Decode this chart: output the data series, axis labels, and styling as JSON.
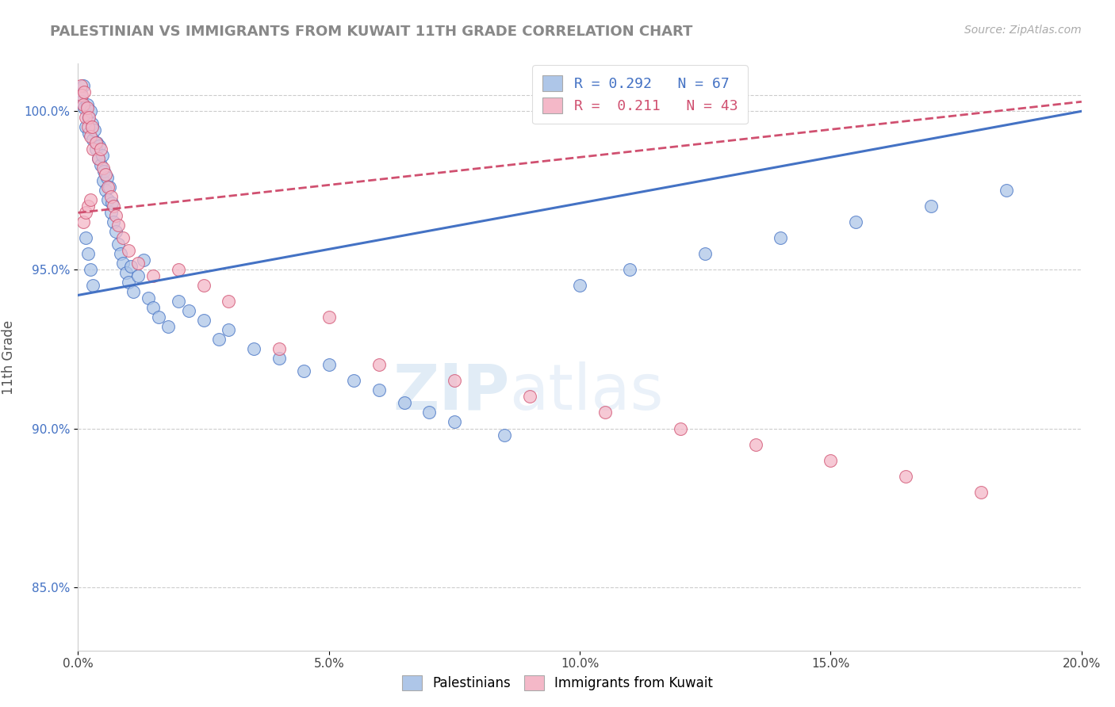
{
  "title": "PALESTINIAN VS IMMIGRANTS FROM KUWAIT 11TH GRADE CORRELATION CHART",
  "source": "Source: ZipAtlas.com",
  "ylabel": "11th Grade",
  "xlim": [
    0.0,
    20.0
  ],
  "ylim": [
    83.0,
    101.5
  ],
  "xticks": [
    0.0,
    5.0,
    10.0,
    15.0,
    20.0
  ],
  "yticks": [
    85.0,
    90.0,
    95.0,
    100.0
  ],
  "ytick_labels": [
    "85.0%",
    "90.0%",
    "95.0%",
    "100.0%"
  ],
  "xtick_labels": [
    "0.0%",
    "5.0%",
    "10.0%",
    "15.0%",
    "20.0%"
  ],
  "blue_R": 0.292,
  "blue_N": 67,
  "pink_R": 0.211,
  "pink_N": 43,
  "blue_color": "#aec6e8",
  "pink_color": "#f4b8c8",
  "blue_line_color": "#4472c4",
  "pink_line_color": "#d05070",
  "legend_label_blue": "Palestinians",
  "legend_label_pink": "Immigrants from Kuwait",
  "watermark_left": "ZIP",
  "watermark_right": "atlas",
  "blue_line_x0": 0.0,
  "blue_line_y0": 94.2,
  "blue_line_x1": 20.0,
  "blue_line_y1": 100.0,
  "pink_line_x0": 0.0,
  "pink_line_y0": 96.8,
  "pink_line_x1": 20.0,
  "pink_line_y1": 100.3,
  "blue_scatter_x": [
    0.05,
    0.08,
    0.1,
    0.12,
    0.15,
    0.18,
    0.2,
    0.22,
    0.25,
    0.28,
    0.3,
    0.32,
    0.35,
    0.38,
    0.4,
    0.42,
    0.45,
    0.48,
    0.5,
    0.52,
    0.55,
    0.58,
    0.6,
    0.62,
    0.65,
    0.68,
    0.7,
    0.75,
    0.8,
    0.85,
    0.9,
    0.95,
    1.0,
    1.05,
    1.1,
    1.2,
    1.3,
    1.4,
    1.5,
    1.6,
    1.8,
    2.0,
    2.2,
    2.5,
    2.8,
    3.0,
    3.5,
    4.0,
    4.5,
    5.0,
    5.5,
    6.0,
    6.5,
    7.0,
    7.5,
    8.5,
    10.0,
    11.0,
    12.5,
    14.0,
    15.5,
    17.0,
    18.5,
    0.15,
    0.2,
    0.25,
    0.3
  ],
  "blue_scatter_y": [
    100.5,
    100.3,
    100.8,
    100.1,
    99.5,
    100.2,
    99.8,
    99.3,
    100.0,
    99.6,
    99.1,
    99.4,
    98.8,
    99.0,
    98.5,
    98.9,
    98.3,
    98.6,
    97.8,
    98.1,
    97.5,
    97.9,
    97.2,
    97.6,
    96.8,
    97.1,
    96.5,
    96.2,
    95.8,
    95.5,
    95.2,
    94.9,
    94.6,
    95.1,
    94.3,
    94.8,
    95.3,
    94.1,
    93.8,
    93.5,
    93.2,
    94.0,
    93.7,
    93.4,
    92.8,
    93.1,
    92.5,
    92.2,
    91.8,
    92.0,
    91.5,
    91.2,
    90.8,
    90.5,
    90.2,
    89.8,
    94.5,
    95.0,
    95.5,
    96.0,
    96.5,
    97.0,
    97.5,
    96.0,
    95.5,
    95.0,
    94.5
  ],
  "pink_scatter_x": [
    0.05,
    0.08,
    0.1,
    0.12,
    0.15,
    0.18,
    0.2,
    0.22,
    0.25,
    0.28,
    0.3,
    0.35,
    0.4,
    0.45,
    0.5,
    0.55,
    0.6,
    0.65,
    0.7,
    0.75,
    0.8,
    0.9,
    1.0,
    1.2,
    1.5,
    2.0,
    2.5,
    3.0,
    4.0,
    5.0,
    6.0,
    7.5,
    9.0,
    10.5,
    12.0,
    13.5,
    15.0,
    16.5,
    18.0,
    0.1,
    0.15,
    0.2,
    0.25
  ],
  "pink_scatter_y": [
    100.8,
    100.5,
    100.2,
    100.6,
    99.8,
    100.1,
    99.5,
    99.8,
    99.2,
    99.5,
    98.8,
    99.0,
    98.5,
    98.8,
    98.2,
    98.0,
    97.6,
    97.3,
    97.0,
    96.7,
    96.4,
    96.0,
    95.6,
    95.2,
    94.8,
    95.0,
    94.5,
    94.0,
    92.5,
    93.5,
    92.0,
    91.5,
    91.0,
    90.5,
    90.0,
    89.5,
    89.0,
    88.5,
    88.0,
    96.5,
    96.8,
    97.0,
    97.2
  ]
}
